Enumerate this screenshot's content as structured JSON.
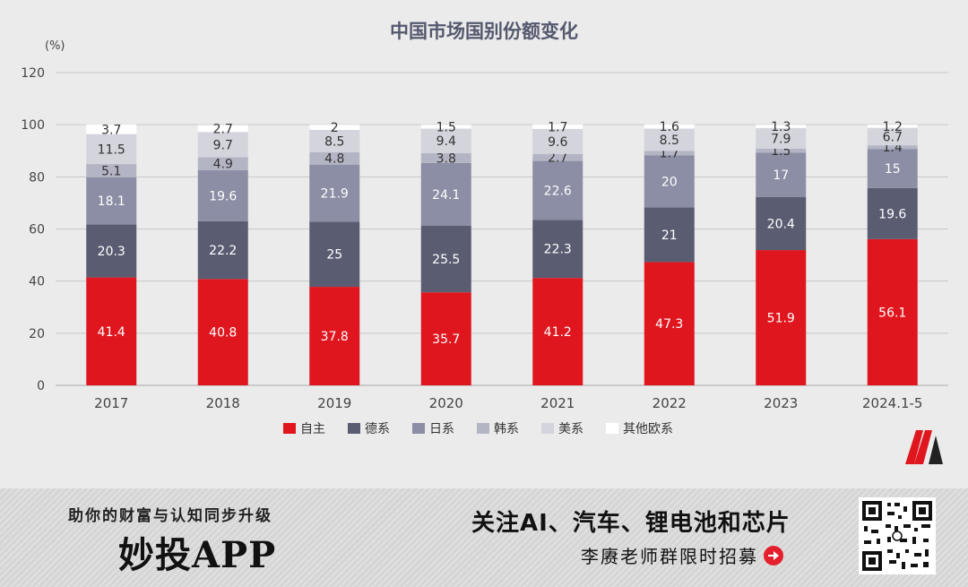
{
  "colors": {
    "自主": "#e0161f",
    "德系": "#5a5d72",
    "日系": "#8b8ea4",
    "韩系": "#b3b5c4",
    "美系": "#d3d4dc",
    "其他欧系": "#ffffff"
  },
  "chart_data": {
    "type": "bar",
    "stacked": true,
    "title": "中国市场国别份额变化",
    "ylabel": "(%)",
    "xlabel": "",
    "ylim": [
      0,
      120
    ],
    "yticks": [
      0,
      20,
      40,
      60,
      80,
      100,
      120
    ],
    "grid": true,
    "legend_position": "bottom",
    "categories": [
      "2017",
      "2018",
      "2019",
      "2020",
      "2021",
      "2022",
      "2023",
      "2024.1-5"
    ],
    "series": [
      {
        "name": "自主",
        "values": [
          41.4,
          40.8,
          37.8,
          35.7,
          41.2,
          47.3,
          51.9,
          56.1
        ]
      },
      {
        "name": "德系",
        "values": [
          20.3,
          22.2,
          25,
          25.5,
          22.3,
          21,
          20.4,
          19.6
        ]
      },
      {
        "name": "日系",
        "values": [
          18.1,
          19.6,
          21.9,
          24.1,
          22.6,
          20,
          17,
          15
        ]
      },
      {
        "name": "韩系",
        "values": [
          5.1,
          4.9,
          4.8,
          3.8,
          2.7,
          1.7,
          1.5,
          1.4
        ]
      },
      {
        "name": "美系",
        "values": [
          11.5,
          9.7,
          8.5,
          9.4,
          9.6,
          8.5,
          7.9,
          6.7
        ]
      },
      {
        "name": "其他欧系",
        "values": [
          3.7,
          2.7,
          2,
          1.5,
          1.7,
          1.6,
          1.3,
          1.2
        ]
      }
    ]
  },
  "footer": {
    "slogan": "助你的财富与认知同步升级",
    "app_name": "妙投APP",
    "headline": "关注AI、汽车、锂电池和芯片",
    "subline": "李赓老师群限时招募"
  },
  "icons": {
    "arrow": "arrow-right-circle-icon",
    "qr": "qr-code-icon",
    "logo": "brand-logo-icon"
  }
}
